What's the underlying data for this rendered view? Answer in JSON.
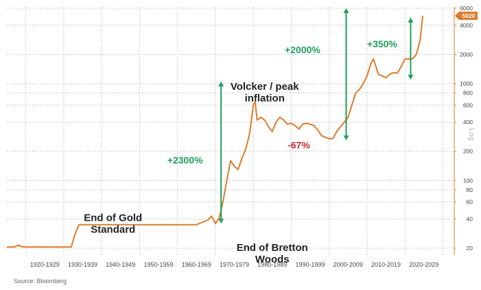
{
  "chart_data": {
    "type": "line",
    "title": "",
    "xlabel": "",
    "ylabel": "Log",
    "y_scale": "log",
    "ylim": [
      17,
      6200
    ],
    "xlim": [
      1915,
      2033
    ],
    "grid": true,
    "colors": {
      "line": "#e07b2a",
      "grid": "#c9c9c9",
      "green": "#1e9e5c",
      "red": "#cc2a2a",
      "badge": "#e07b2a"
    },
    "categories": [
      "1920-1929",
      "1930-1939",
      "1940-1949",
      "1950-1959",
      "1960-1969",
      "1970-1979",
      "1980-1989",
      "1990-1999",
      "2000-2009",
      "2010-2019",
      "2020-2029"
    ],
    "y_ticks": [
      20,
      40,
      60,
      80,
      100,
      200,
      400,
      600,
      800,
      1000,
      2000,
      4000,
      6000
    ],
    "last_value_badge": "5020",
    "series": [
      {
        "x": [
          1915,
          1917,
          1918,
          1919,
          1920,
          1922,
          1925,
          1928,
          1932,
          1933,
          1934,
          1935,
          1940,
          1945,
          1950,
          1955,
          1960,
          1965,
          1968,
          1969,
          1970,
          1971,
          1972,
          1973,
          1974,
          1975,
          1976,
          1977,
          1978,
          1979,
          1980,
          1980.5,
          1981,
          1982,
          1983,
          1984,
          1985,
          1986,
          1987,
          1988,
          1989,
          1990,
          1991,
          1992,
          1993,
          1994,
          1995,
          1996,
          1997,
          1998,
          1999,
          2000,
          2001,
          2002,
          2003,
          2004,
          2005,
          2006,
          2007,
          2008,
          2009,
          2010,
          2011,
          2011.7,
          2012,
          2013,
          2014,
          2015,
          2016,
          2017,
          2018,
          2019,
          2020,
          2021,
          2022,
          2023,
          2024,
          2024.7
        ],
        "values": [
          20.6,
          20.6,
          21.5,
          20.7,
          20.6,
          20.6,
          20.6,
          20.6,
          20.6,
          28,
          35,
          35,
          35,
          35,
          35,
          35,
          35,
          35,
          39,
          43,
          36,
          41,
          60,
          100,
          160,
          140,
          130,
          170,
          210,
          300,
          600,
          650,
          420,
          450,
          420,
          360,
          320,
          400,
          450,
          420,
          380,
          390,
          370,
          340,
          380,
          390,
          380,
          370,
          330,
          290,
          280,
          270,
          270,
          320,
          360,
          400,
          450,
          600,
          800,
          870,
          1000,
          1200,
          1600,
          1800,
          1650,
          1250,
          1200,
          1150,
          1250,
          1300,
          1280,
          1500,
          1800,
          1800,
          1800,
          2000,
          2800,
          5020
        ]
      }
    ],
    "annotations": [
      {
        "text_lines": [
          "End of Gold",
          "Standard"
        ],
        "style": "dark",
        "at": [
          1943,
          38
        ]
      },
      {
        "text_lines": [
          "End of Bretton",
          "Woods"
        ],
        "style": "dark",
        "at": [
          1985,
          18.8
        ]
      },
      {
        "text_lines": [
          "Volcker / peak",
          "inflation"
        ],
        "style": "dark",
        "at": [
          1983,
          860
        ]
      },
      {
        "text_lines": [
          "+2300%"
        ],
        "style": "green",
        "at": [
          1962,
          150
        ]
      },
      {
        "text_lines": [
          "-67%"
        ],
        "style": "red",
        "at": [
          1992,
          215
        ]
      },
      {
        "text_lines": [
          "+2000%"
        ],
        "style": "green",
        "at": [
          1993,
          2070
        ]
      },
      {
        "text_lines": [
          "+350%"
        ],
        "style": "green",
        "at": [
          2014,
          2380
        ]
      }
    ],
    "arrows": [
      {
        "x": 1971.5,
        "from": 36,
        "to": 1050,
        "style": "green"
      },
      {
        "x": 2004.5,
        "from": 260,
        "to": 6000,
        "style": "green"
      },
      {
        "x": 2021.5,
        "from": 1100,
        "to": 4800,
        "style": "green"
      }
    ],
    "source": "Source: Bloomberg"
  }
}
